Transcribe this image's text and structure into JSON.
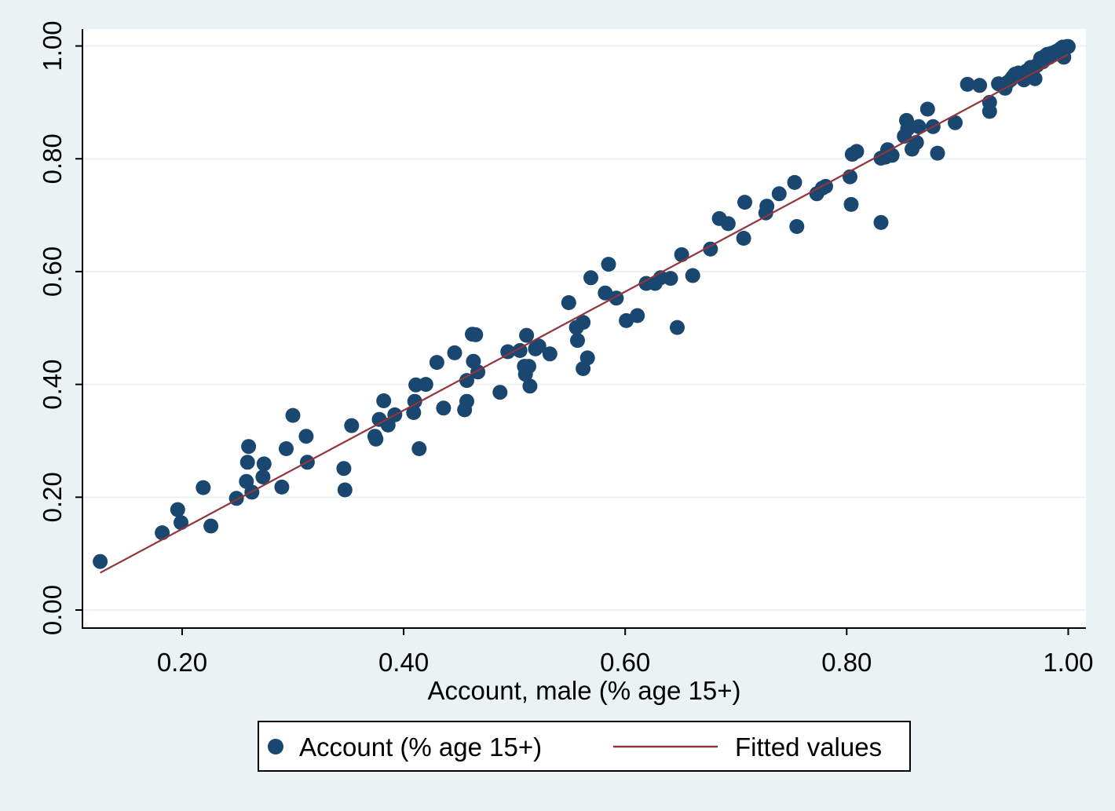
{
  "chart_data": {
    "type": "scatter",
    "xlabel": "Account, male (% age 15+)",
    "ylabel": "",
    "xlim": [
      0.11,
      1.016
    ],
    "ylim": [
      -0.032,
      1.03
    ],
    "xticks": [
      0.2,
      0.4,
      0.6,
      0.8,
      1.0
    ],
    "yticks": [
      0.0,
      0.2,
      0.4,
      0.6,
      0.8,
      1.0
    ],
    "xtick_labels": [
      "0.20",
      "0.40",
      "0.60",
      "0.80",
      "1.00"
    ],
    "ytick_labels": [
      "0.00",
      "0.20",
      "0.40",
      "0.60",
      "0.80",
      "1.00"
    ],
    "grid": "horizontal",
    "legend_position": "bottom",
    "colors": {
      "background": "#eaf2f3",
      "plot_area": "#ffffff",
      "points": "#1a476f",
      "fit_line": "#90353b",
      "grid": "#eaf2f3"
    },
    "series": [
      {
        "name": "Account (% age 15+)",
        "kind": "scatter",
        "points": [
          [
            0.126,
            0.086
          ],
          [
            0.182,
            0.137
          ],
          [
            0.196,
            0.178
          ],
          [
            0.199,
            0.155
          ],
          [
            0.219,
            0.217
          ],
          [
            0.226,
            0.149
          ],
          [
            0.249,
            0.198
          ],
          [
            0.258,
            0.228
          ],
          [
            0.259,
            0.262
          ],
          [
            0.26,
            0.29
          ],
          [
            0.263,
            0.209
          ],
          [
            0.273,
            0.236
          ],
          [
            0.274,
            0.259
          ],
          [
            0.29,
            0.218
          ],
          [
            0.294,
            0.286
          ],
          [
            0.3,
            0.345
          ],
          [
            0.312,
            0.308
          ],
          [
            0.313,
            0.262
          ],
          [
            0.346,
            0.251
          ],
          [
            0.347,
            0.213
          ],
          [
            0.353,
            0.327
          ],
          [
            0.374,
            0.308
          ],
          [
            0.375,
            0.303
          ],
          [
            0.378,
            0.338
          ],
          [
            0.382,
            0.371
          ],
          [
            0.386,
            0.328
          ],
          [
            0.392,
            0.346
          ],
          [
            0.409,
            0.35
          ],
          [
            0.41,
            0.37
          ],
          [
            0.411,
            0.399
          ],
          [
            0.414,
            0.286
          ],
          [
            0.42,
            0.4
          ],
          [
            0.43,
            0.439
          ],
          [
            0.436,
            0.358
          ],
          [
            0.446,
            0.456
          ],
          [
            0.455,
            0.355
          ],
          [
            0.457,
            0.37
          ],
          [
            0.457,
            0.407
          ],
          [
            0.462,
            0.489
          ],
          [
            0.463,
            0.441
          ],
          [
            0.465,
            0.488
          ],
          [
            0.467,
            0.422
          ],
          [
            0.487,
            0.386
          ],
          [
            0.494,
            0.458
          ],
          [
            0.505,
            0.46
          ],
          [
            0.509,
            0.432
          ],
          [
            0.51,
            0.418
          ],
          [
            0.511,
            0.487
          ],
          [
            0.513,
            0.432
          ],
          [
            0.514,
            0.397
          ],
          [
            0.519,
            0.463
          ],
          [
            0.522,
            0.468
          ],
          [
            0.532,
            0.454
          ],
          [
            0.549,
            0.545
          ],
          [
            0.556,
            0.501
          ],
          [
            0.557,
            0.478
          ],
          [
            0.562,
            0.51
          ],
          [
            0.562,
            0.428
          ],
          [
            0.566,
            0.447
          ],
          [
            0.569,
            0.589
          ],
          [
            0.582,
            0.562
          ],
          [
            0.585,
            0.613
          ],
          [
            0.592,
            0.553
          ],
          [
            0.601,
            0.513
          ],
          [
            0.611,
            0.522
          ],
          [
            0.619,
            0.579
          ],
          [
            0.627,
            0.579
          ],
          [
            0.632,
            0.589
          ],
          [
            0.641,
            0.588
          ],
          [
            0.647,
            0.501
          ],
          [
            0.651,
            0.63
          ],
          [
            0.661,
            0.593
          ],
          [
            0.677,
            0.64
          ],
          [
            0.685,
            0.694
          ],
          [
            0.693,
            0.685
          ],
          [
            0.707,
            0.659
          ],
          [
            0.708,
            0.723
          ],
          [
            0.727,
            0.704
          ],
          [
            0.728,
            0.716
          ],
          [
            0.739,
            0.738
          ],
          [
            0.753,
            0.758
          ],
          [
            0.755,
            0.68
          ],
          [
            0.773,
            0.738
          ],
          [
            0.778,
            0.748
          ],
          [
            0.781,
            0.751
          ],
          [
            0.803,
            0.768
          ],
          [
            0.804,
            0.719
          ],
          [
            0.805,
            0.808
          ],
          [
            0.809,
            0.813
          ],
          [
            0.831,
            0.687
          ],
          [
            0.831,
            0.801
          ],
          [
            0.835,
            0.803
          ],
          [
            0.837,
            0.816
          ],
          [
            0.841,
            0.806
          ],
          [
            0.852,
            0.84
          ],
          [
            0.854,
            0.868
          ],
          [
            0.855,
            0.853
          ],
          [
            0.859,
            0.817
          ],
          [
            0.863,
            0.829
          ],
          [
            0.865,
            0.857
          ],
          [
            0.873,
            0.888
          ],
          [
            0.878,
            0.857
          ],
          [
            0.882,
            0.81
          ],
          [
            0.898,
            0.864
          ],
          [
            0.909,
            0.932
          ],
          [
            0.92,
            0.93
          ],
          [
            0.929,
            0.9
          ],
          [
            0.929,
            0.884
          ],
          [
            0.937,
            0.933
          ],
          [
            0.943,
            0.925
          ],
          [
            0.945,
            0.935
          ],
          [
            0.948,
            0.94
          ],
          [
            0.95,
            0.945
          ],
          [
            0.952,
            0.95
          ],
          [
            0.955,
            0.952
          ],
          [
            0.957,
            0.948
          ],
          [
            0.96,
            0.94
          ],
          [
            0.962,
            0.955
          ],
          [
            0.964,
            0.945
          ],
          [
            0.966,
            0.962
          ],
          [
            0.968,
            0.958
          ],
          [
            0.97,
            0.942
          ],
          [
            0.972,
            0.966
          ],
          [
            0.975,
            0.978
          ],
          [
            0.977,
            0.972
          ],
          [
            0.979,
            0.982
          ],
          [
            0.981,
            0.985
          ],
          [
            0.983,
            0.98
          ],
          [
            0.985,
            0.987
          ],
          [
            0.987,
            0.988
          ],
          [
            0.989,
            0.99
          ],
          [
            0.991,
            0.992
          ],
          [
            0.993,
            0.995
          ],
          [
            0.995,
            0.998
          ],
          [
            0.996,
            0.98
          ],
          [
            0.997,
            0.997
          ],
          [
            0.999,
            0.999
          ],
          [
            1.0,
            0.999
          ]
        ]
      },
      {
        "name": "Fitted values",
        "kind": "line",
        "points": [
          [
            0.126,
            0.066
          ],
          [
            1.0,
            0.985
          ]
        ]
      }
    ]
  },
  "legend": {
    "items": [
      {
        "label": "Account (% age 15+)",
        "symbol": "marker"
      },
      {
        "label": "Fitted values",
        "symbol": "line"
      }
    ]
  }
}
